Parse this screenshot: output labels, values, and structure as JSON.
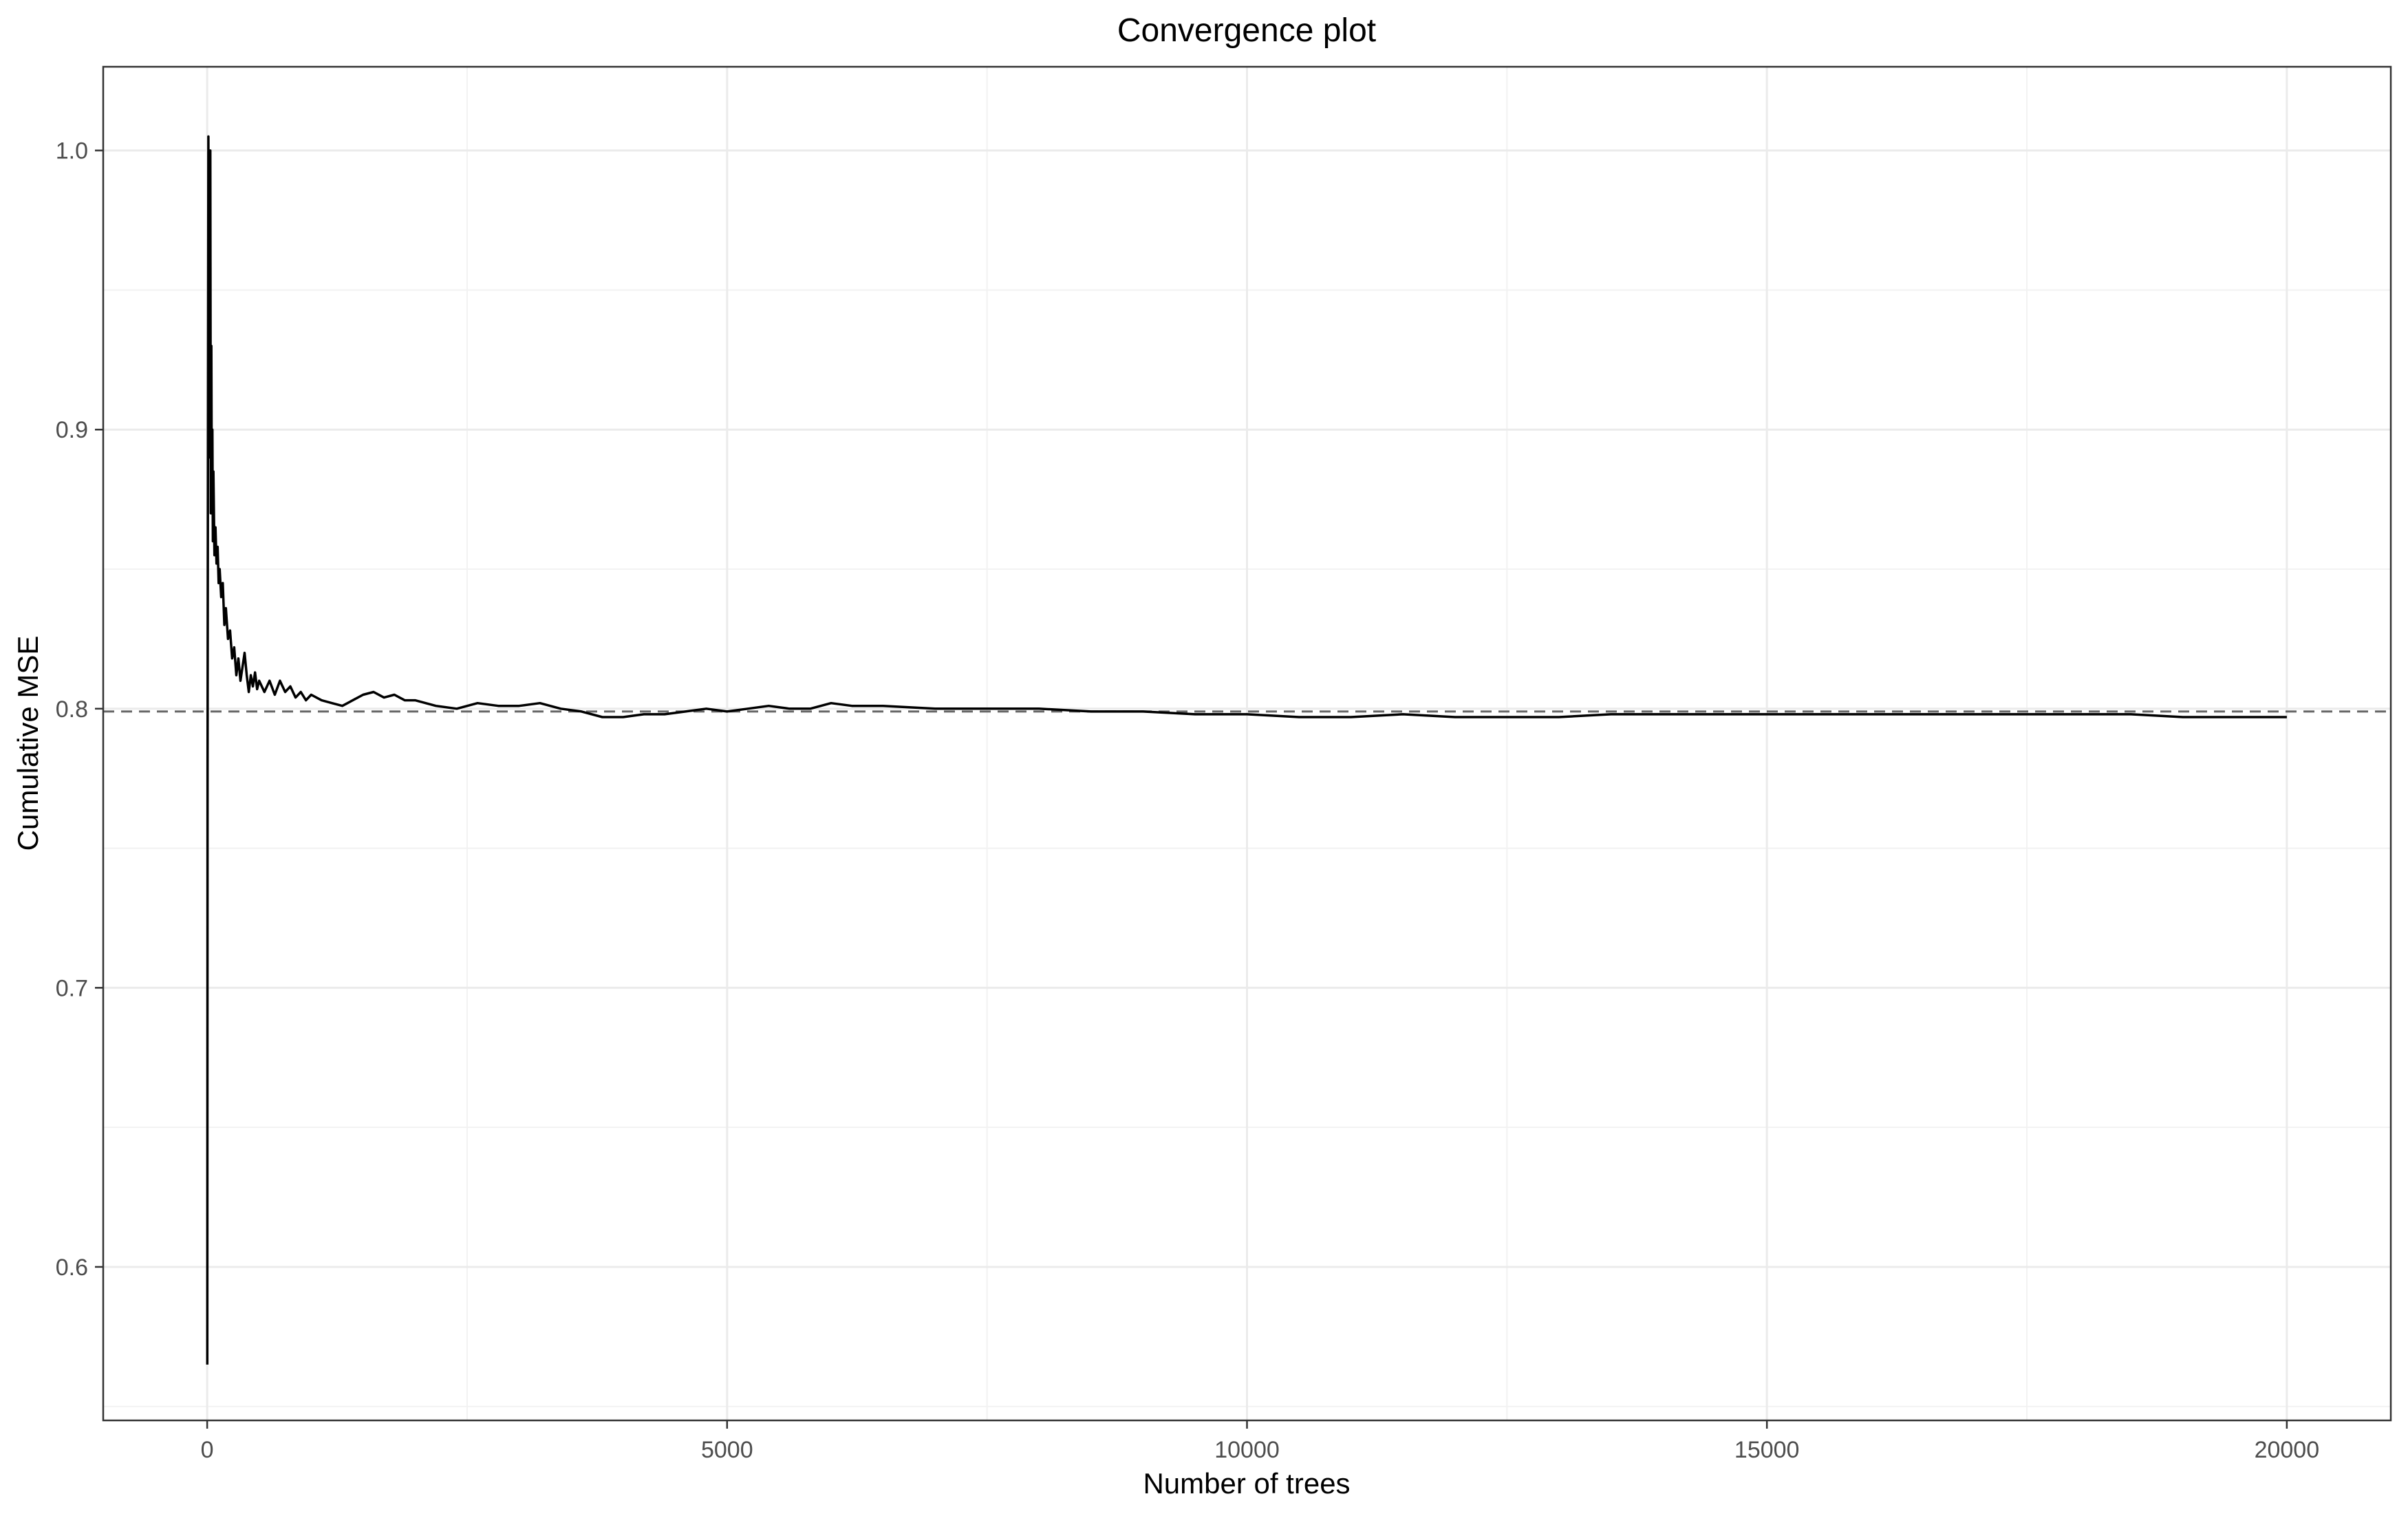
{
  "chart_data": {
    "type": "line",
    "title": "Convergence plot",
    "xlabel": "Number of trees",
    "ylabel": "Cumulative MSE",
    "xlim": [
      -1000,
      21000
    ],
    "ylim": [
      0.545,
      1.03
    ],
    "x_ticks": [
      0,
      5000,
      10000,
      15000,
      20000
    ],
    "x_tick_labels": [
      "0",
      "5000",
      "10000",
      "15000",
      "20000"
    ],
    "y_ticks": [
      0.6,
      0.7,
      0.8,
      0.9,
      1.0
    ],
    "y_tick_labels": [
      "0.6",
      "0.7",
      "0.8",
      "0.9",
      "1.0"
    ],
    "grid": true,
    "reference_line": {
      "y": 0.799,
      "style": "dashed",
      "color": "#666666"
    },
    "series": [
      {
        "color": "#000000",
        "x": [
          1,
          4,
          8,
          12,
          16,
          20,
          25,
          30,
          35,
          40,
          45,
          50,
          55,
          60,
          70,
          80,
          90,
          100,
          110,
          120,
          135,
          150,
          165,
          180,
          200,
          220,
          240,
          260,
          280,
          300,
          320,
          340,
          360,
          380,
          400,
          420,
          440,
          460,
          480,
          500,
          550,
          600,
          650,
          700,
          750,
          800,
          850,
          900,
          950,
          1000,
          1100,
          1200,
          1300,
          1400,
          1500,
          1600,
          1700,
          1800,
          1900,
          2000,
          2200,
          2400,
          2600,
          2800,
          3000,
          3200,
          3400,
          3600,
          3800,
          4000,
          4200,
          4400,
          4600,
          4800,
          5000,
          5200,
          5400,
          5600,
          5800,
          6000,
          6200,
          6500,
          7000,
          7500,
          8000,
          8500,
          9000,
          9500,
          10000,
          10500,
          11000,
          11500,
          12000,
          12500,
          13000,
          13500,
          14000,
          14500,
          15000,
          15500,
          16000,
          16500,
          17000,
          17500,
          18000,
          18500,
          19000,
          19500,
          20000
        ],
        "y": [
          0.565,
          0.78,
          0.9,
          1.005,
          0.93,
          0.98,
          0.89,
          1.0,
          0.87,
          0.93,
          0.87,
          0.9,
          0.86,
          0.885,
          0.855,
          0.865,
          0.852,
          0.858,
          0.845,
          0.85,
          0.84,
          0.845,
          0.83,
          0.836,
          0.825,
          0.828,
          0.818,
          0.822,
          0.812,
          0.818,
          0.81,
          0.815,
          0.82,
          0.812,
          0.806,
          0.812,
          0.808,
          0.813,
          0.807,
          0.81,
          0.806,
          0.81,
          0.805,
          0.81,
          0.806,
          0.808,
          0.804,
          0.806,
          0.803,
          0.805,
          0.803,
          0.802,
          0.801,
          0.803,
          0.805,
          0.806,
          0.804,
          0.805,
          0.803,
          0.803,
          0.801,
          0.8,
          0.802,
          0.801,
          0.801,
          0.802,
          0.8,
          0.799,
          0.797,
          0.797,
          0.798,
          0.798,
          0.799,
          0.8,
          0.799,
          0.8,
          0.801,
          0.8,
          0.8,
          0.802,
          0.801,
          0.801,
          0.8,
          0.8,
          0.8,
          0.799,
          0.799,
          0.798,
          0.798,
          0.797,
          0.797,
          0.798,
          0.797,
          0.797,
          0.797,
          0.798,
          0.798,
          0.798,
          0.798,
          0.798,
          0.798,
          0.798,
          0.798,
          0.798,
          0.798,
          0.798,
          0.797,
          0.797,
          0.797
        ]
      }
    ]
  }
}
